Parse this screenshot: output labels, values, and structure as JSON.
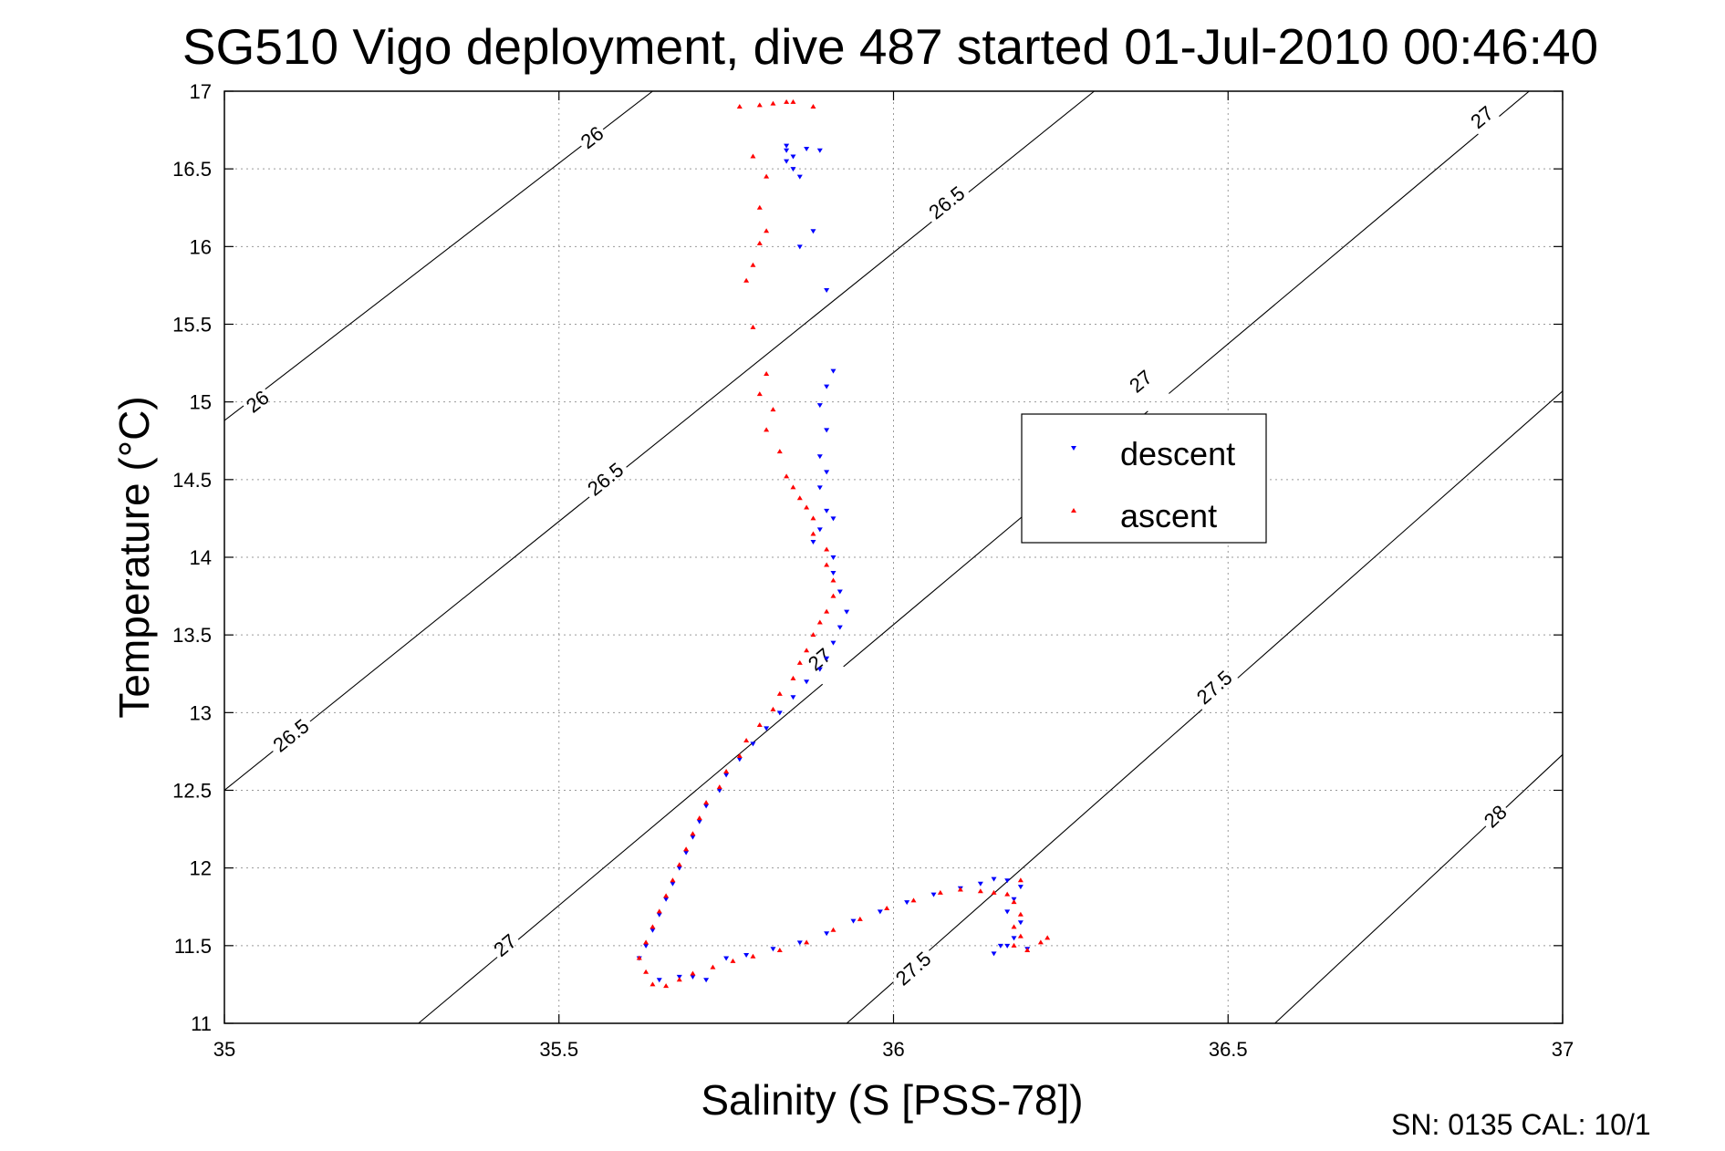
{
  "chart_data": {
    "type": "scatter",
    "title": "SG510 Vigo deployment, dive 487 started 01-Jul-2010 00:46:40",
    "xlabel": "Salinity (S [PSS-78])",
    "ylabel": "Temperature (°C)",
    "xlim": [
      35,
      37
    ],
    "ylim": [
      11,
      17
    ],
    "x_ticks": [
      "35",
      "35.5",
      "36",
      "36.5",
      "37"
    ],
    "y_ticks": [
      "11",
      "11.5",
      "12",
      "12.5",
      "13",
      "13.5",
      "14",
      "14.5",
      "15",
      "15.5",
      "16",
      "16.5",
      "17"
    ],
    "grid": true,
    "legend_position": "center-right",
    "footer": "SN: 0135  CAL: 10/1",
    "density_contours": [
      {
        "label": "26",
        "points": [
          [
            35.0,
            14.88
          ],
          [
            35.64,
            17.0
          ]
        ],
        "label_at": [
          [
            35.05,
            15.0
          ],
          [
            35.55,
            16.7
          ]
        ]
      },
      {
        "label": "26.5",
        "points": [
          [
            35.0,
            12.5
          ],
          [
            36.3,
            17.0
          ]
        ],
        "label_at": [
          [
            35.1,
            12.85
          ],
          [
            35.57,
            14.5
          ],
          [
            36.08,
            16.28
          ]
        ]
      },
      {
        "label": "27",
        "points": [
          [
            35.29,
            11.0
          ],
          [
            36.95,
            17.0
          ]
        ],
        "label_at": [
          [
            35.42,
            11.5
          ],
          [
            35.89,
            13.34
          ],
          [
            36.37,
            15.13
          ],
          [
            36.88,
            16.83
          ]
        ]
      },
      {
        "label": "27.5",
        "points": [
          [
            35.93,
            11.0
          ],
          [
            37.0,
            15.07
          ]
        ],
        "label_at": [
          [
            36.03,
            11.35
          ],
          [
            36.48,
            13.16
          ]
        ]
      },
      {
        "label": "28",
        "points": [
          [
            36.57,
            11.0
          ],
          [
            37.0,
            12.73
          ]
        ],
        "label_at": [
          [
            36.9,
            12.33
          ]
        ]
      }
    ],
    "series": [
      {
        "name": "descent",
        "color": "#0000ff",
        "marker": "triangle-down",
        "points": [
          [
            35.84,
            16.65
          ],
          [
            35.84,
            16.62
          ],
          [
            35.85,
            16.58
          ],
          [
            35.84,
            16.55
          ],
          [
            35.85,
            16.5
          ],
          [
            35.86,
            16.45
          ],
          [
            35.87,
            16.63
          ],
          [
            35.89,
            16.62
          ],
          [
            35.86,
            16.0
          ],
          [
            35.88,
            16.1
          ],
          [
            35.9,
            15.72
          ],
          [
            35.91,
            15.2
          ],
          [
            35.9,
            15.1
          ],
          [
            35.89,
            14.98
          ],
          [
            35.9,
            14.82
          ],
          [
            35.89,
            14.65
          ],
          [
            35.9,
            14.55
          ],
          [
            35.89,
            14.45
          ],
          [
            35.9,
            14.3
          ],
          [
            35.91,
            14.25
          ],
          [
            35.89,
            14.18
          ],
          [
            35.88,
            14.1
          ],
          [
            35.91,
            14.0
          ],
          [
            35.91,
            13.9
          ],
          [
            35.92,
            13.78
          ],
          [
            35.93,
            13.65
          ],
          [
            35.92,
            13.55
          ],
          [
            35.91,
            13.45
          ],
          [
            35.9,
            13.35
          ],
          [
            35.89,
            13.28
          ],
          [
            35.87,
            13.2
          ],
          [
            35.85,
            13.1
          ],
          [
            35.83,
            13.0
          ],
          [
            35.81,
            12.9
          ],
          [
            35.79,
            12.8
          ],
          [
            35.77,
            12.7
          ],
          [
            35.75,
            12.6
          ],
          [
            35.74,
            12.5
          ],
          [
            35.72,
            12.4
          ],
          [
            35.71,
            12.3
          ],
          [
            35.7,
            12.2
          ],
          [
            35.69,
            12.1
          ],
          [
            35.68,
            12.0
          ],
          [
            35.67,
            11.9
          ],
          [
            35.66,
            11.8
          ],
          [
            35.65,
            11.7
          ],
          [
            35.64,
            11.6
          ],
          [
            35.63,
            11.5
          ],
          [
            35.62,
            11.42
          ],
          [
            35.65,
            11.28
          ],
          [
            35.68,
            11.3
          ],
          [
            35.7,
            11.3
          ],
          [
            35.72,
            11.28
          ],
          [
            35.75,
            11.42
          ],
          [
            35.78,
            11.44
          ],
          [
            35.82,
            11.48
          ],
          [
            35.86,
            11.52
          ],
          [
            35.9,
            11.58
          ],
          [
            35.94,
            11.66
          ],
          [
            35.98,
            11.72
          ],
          [
            36.02,
            11.78
          ],
          [
            36.06,
            11.83
          ],
          [
            36.1,
            11.87
          ],
          [
            36.13,
            11.9
          ],
          [
            36.15,
            11.93
          ],
          [
            36.17,
            11.92
          ],
          [
            36.19,
            11.88
          ],
          [
            36.18,
            11.8
          ],
          [
            36.17,
            11.72
          ],
          [
            36.19,
            11.65
          ],
          [
            36.18,
            11.55
          ],
          [
            36.16,
            11.5
          ],
          [
            36.15,
            11.45
          ],
          [
            36.17,
            11.5
          ],
          [
            36.2,
            11.48
          ]
        ]
      },
      {
        "name": "ascent",
        "color": "#ff0000",
        "marker": "triangle-up",
        "points": [
          [
            35.77,
            16.9
          ],
          [
            35.8,
            16.91
          ],
          [
            35.82,
            16.92
          ],
          [
            35.84,
            16.93
          ],
          [
            35.85,
            16.93
          ],
          [
            35.88,
            16.9
          ],
          [
            35.79,
            16.58
          ],
          [
            35.81,
            16.45
          ],
          [
            35.8,
            16.25
          ],
          [
            35.81,
            16.1
          ],
          [
            35.8,
            16.02
          ],
          [
            35.79,
            15.88
          ],
          [
            35.78,
            15.78
          ],
          [
            35.79,
            15.48
          ],
          [
            35.81,
            15.18
          ],
          [
            35.8,
            15.05
          ],
          [
            35.82,
            14.95
          ],
          [
            35.81,
            14.82
          ],
          [
            35.83,
            14.68
          ],
          [
            35.84,
            14.52
          ],
          [
            35.85,
            14.45
          ],
          [
            35.86,
            14.38
          ],
          [
            35.87,
            14.32
          ],
          [
            35.88,
            14.25
          ],
          [
            35.88,
            14.15
          ],
          [
            35.9,
            14.05
          ],
          [
            35.9,
            13.95
          ],
          [
            35.91,
            13.85
          ],
          [
            35.91,
            13.75
          ],
          [
            35.9,
            13.65
          ],
          [
            35.89,
            13.58
          ],
          [
            35.88,
            13.5
          ],
          [
            35.87,
            13.4
          ],
          [
            35.86,
            13.32
          ],
          [
            35.85,
            13.22
          ],
          [
            35.83,
            13.12
          ],
          [
            35.82,
            13.02
          ],
          [
            35.8,
            12.92
          ],
          [
            35.78,
            12.82
          ],
          [
            35.77,
            12.72
          ],
          [
            35.75,
            12.62
          ],
          [
            35.74,
            12.52
          ],
          [
            35.72,
            12.42
          ],
          [
            35.71,
            12.32
          ],
          [
            35.7,
            12.22
          ],
          [
            35.69,
            12.12
          ],
          [
            35.68,
            12.02
          ],
          [
            35.67,
            11.92
          ],
          [
            35.66,
            11.82
          ],
          [
            35.65,
            11.72
          ],
          [
            35.64,
            11.62
          ],
          [
            35.63,
            11.52
          ],
          [
            35.62,
            11.42
          ],
          [
            35.63,
            11.33
          ],
          [
            35.64,
            11.25
          ],
          [
            35.66,
            11.24
          ],
          [
            35.68,
            11.28
          ],
          [
            35.7,
            11.32
          ],
          [
            35.73,
            11.36
          ],
          [
            35.76,
            11.4
          ],
          [
            35.79,
            11.43
          ],
          [
            35.83,
            11.47
          ],
          [
            35.87,
            11.52
          ],
          [
            35.91,
            11.6
          ],
          [
            35.95,
            11.67
          ],
          [
            35.99,
            11.74
          ],
          [
            36.03,
            11.79
          ],
          [
            36.07,
            11.84
          ],
          [
            36.1,
            11.86
          ],
          [
            36.13,
            11.85
          ],
          [
            36.15,
            11.84
          ],
          [
            36.17,
            11.83
          ],
          [
            36.18,
            11.78
          ],
          [
            36.19,
            11.7
          ],
          [
            36.18,
            11.62
          ],
          [
            36.19,
            11.56
          ],
          [
            36.18,
            11.5
          ],
          [
            36.2,
            11.47
          ],
          [
            36.22,
            11.52
          ],
          [
            36.23,
            11.55
          ],
          [
            36.19,
            11.92
          ]
        ]
      }
    ]
  }
}
